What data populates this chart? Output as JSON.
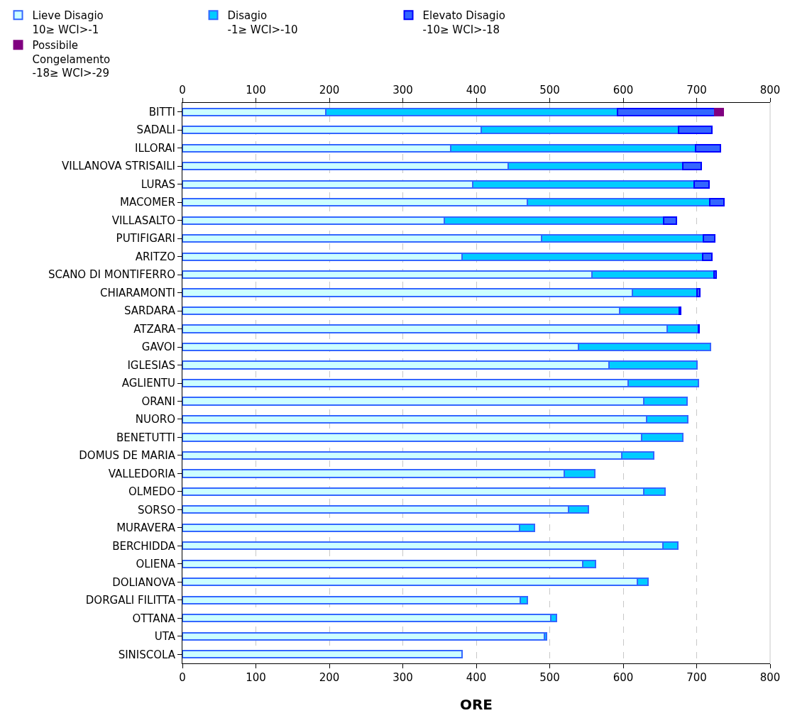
{
  "chart_data": {
    "type": "bar",
    "orientation": "horizontal",
    "stacked": true,
    "xlabel": "ORE",
    "categories": [
      "BITTI",
      "SADALI",
      "ILLORAI",
      "VILLANOVA STRISAILI",
      "LURAS",
      "MACOMER",
      "VILLASALTO",
      "PUTIFIGARI",
      "ARITZO",
      "SCANO DI MONTIFERRO",
      "CHIARAMONTI",
      "SARDARA",
      "ATZARA",
      "GAVOI",
      "IGLESIAS",
      "AGLIENTU",
      "ORANI",
      "NUORO",
      "BENETUTTI",
      "DOMUS DE MARIA",
      "VALLEDORIA",
      "OLMEDO",
      "SORSO",
      "MURAVERA",
      "BERCHIDDA",
      "OLIENA",
      "DOLIANOVA",
      "DORGALI FILITTA",
      "OTTANA",
      "UTA",
      "SINISCOLA"
    ],
    "series": [
      {
        "name": "Lieve Disagio\n10≥ WCI>-1",
        "color": "#ccffff",
        "values": [
          195,
          407,
          365,
          443,
          395,
          470,
          357,
          489,
          381,
          557,
          613,
          595,
          660,
          539,
          581,
          607,
          628,
          632,
          625,
          598,
          520,
          628,
          526,
          459,
          654,
          545,
          619,
          460,
          501,
          493,
          381
        ]
      },
      {
        "name": "Disagio\n-1≥ WCI>-10",
        "color": "#00ccff",
        "values": [
          397,
          268,
          334,
          238,
          302,
          248,
          298,
          220,
          327,
          167,
          87,
          81,
          42,
          180,
          119,
          95,
          59,
          56,
          56,
          44,
          41,
          29,
          27,
          20,
          20,
          17,
          15,
          10,
          8,
          3,
          0
        ]
      },
      {
        "name": "Elevato Disagio\n-10≥ WCI>-18",
        "color": "#3366ff",
        "values": [
          133,
          46,
          33,
          25,
          20,
          19,
          17,
          16,
          13,
          3,
          4,
          2,
          1,
          0,
          0,
          0,
          0,
          0,
          0,
          0,
          0,
          0,
          0,
          0,
          0,
          0,
          0,
          0,
          0,
          0,
          0
        ]
      },
      {
        "name": "Possibile\nCongelamento\n-18≥ WCI>-29",
        "color": "#800080",
        "values": [
          11,
          0,
          0,
          0,
          0,
          0,
          0,
          0,
          0,
          0,
          0,
          0,
          0,
          0,
          0,
          0,
          0,
          0,
          0,
          0,
          0,
          0,
          0,
          0,
          0,
          0,
          0,
          0,
          0,
          0,
          0
        ]
      }
    ],
    "xlim": [
      0,
      800
    ],
    "xticks": [
      0,
      100,
      200,
      300,
      400,
      500,
      600,
      700,
      800
    ],
    "x2lim": [
      0,
      800
    ],
    "x2ticks": [
      0,
      100,
      200,
      300,
      400,
      500,
      600,
      700,
      800
    ],
    "grid": "x",
    "legend": "top"
  }
}
